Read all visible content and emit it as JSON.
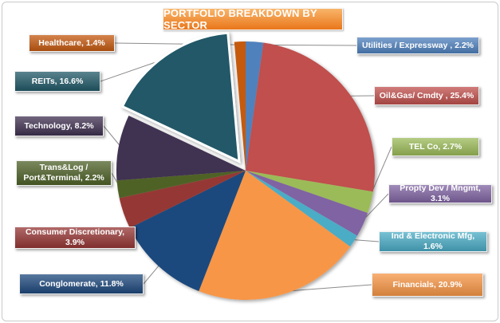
{
  "chart_data": {
    "type": "pie",
    "title": "PORTFOLIO BREAKDOWN BY SECTOR",
    "slices": [
      {
        "label": "Utilities / Expressway , 2.2%",
        "value": 2.2,
        "color": "#4f81bd"
      },
      {
        "label": "Oil&Gas/ Cmdty , 25.4%",
        "value": 25.4,
        "color": "#c0504d"
      },
      {
        "label": "TEL Co, 2.7%",
        "value": 2.7,
        "color": "#9bbb59"
      },
      {
        "label": "Propty Dev / Mngmt, 3.1%",
        "value": 3.1,
        "color": "#8064a2"
      },
      {
        "label": "Ind & Electronic Mfg, 1.6%",
        "value": 1.6,
        "color": "#4bacc6"
      },
      {
        "label": "Financials, 20.9%",
        "value": 20.9,
        "color": "#f79646"
      },
      {
        "label": "Conglomerate, 11.8%",
        "value": 11.8,
        "color": "#1f497d"
      },
      {
        "label": "Consumer Discretionary, 3.9%",
        "value": 3.9,
        "color": "#953735"
      },
      {
        "label": "Trans&Log /\nPort&Terminal, 2.2%",
        "value": 2.2,
        "color": "#4f6228"
      },
      {
        "label": "Technology, 8.2%",
        "value": 8.2,
        "color": "#403151"
      },
      {
        "label": "REITs, 16.6%",
        "value": 16.6,
        "color": "#215968",
        "exploded": true
      },
      {
        "label": "Healthcare, 1.4%",
        "value": 1.4,
        "color": "#c55a11"
      }
    ]
  }
}
